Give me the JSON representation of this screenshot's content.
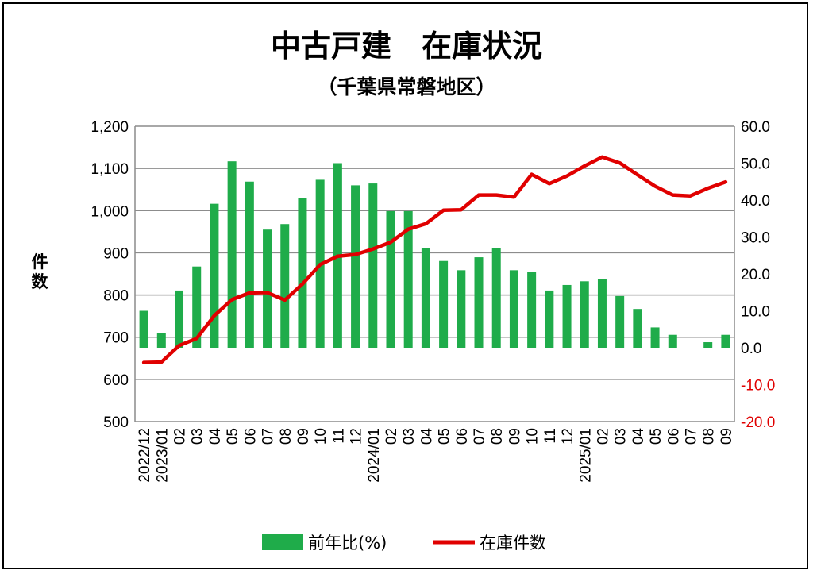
{
  "chart_data": {
    "type": "bar+line",
    "title": "中古戸建　在庫状況",
    "subtitle": "（千葉県常磐地区）",
    "ylabel_left": "件数",
    "ylim_left": [
      500,
      1200
    ],
    "yticks_left": [
      "1,200",
      "1,100",
      "1,000",
      "900",
      "800",
      "700",
      "600",
      "500"
    ],
    "ylim_right": [
      -20,
      60
    ],
    "yticks_right": [
      "60.0",
      "50.0",
      "40.0",
      "30.0",
      "20.0",
      "10.0",
      "0.0",
      "-10.0",
      "-20.0"
    ],
    "categories": [
      "2022/12",
      "2023/01",
      "02",
      "03",
      "04",
      "05",
      "06",
      "07",
      "08",
      "09",
      "10",
      "11",
      "12",
      "2024/01",
      "02",
      "03",
      "04",
      "05",
      "06",
      "07",
      "08",
      "09",
      "10",
      "11",
      "12",
      "2025/01",
      "02",
      "03",
      "04",
      "05",
      "06",
      "07",
      "08",
      "09"
    ],
    "series": [
      {
        "name": "前年比(%)",
        "type": "bar",
        "axis": "right",
        "color": "#1fac4a",
        "values": [
          10.0,
          4.0,
          15.5,
          22.0,
          39.0,
          50.5,
          45.0,
          32.0,
          33.5,
          40.5,
          45.5,
          50.0,
          44.0,
          44.5,
          37.0,
          37.0,
          27.0,
          23.5,
          21.0,
          24.5,
          27.0,
          21.0,
          20.5,
          15.5,
          17.0,
          18.0,
          18.5,
          14.0,
          10.5,
          5.5,
          3.5,
          0.0,
          1.5,
          3.5
        ]
      },
      {
        "name": "在庫件数",
        "type": "line",
        "axis": "left",
        "color": "#e00000",
        "values": [
          640,
          641,
          680,
          697,
          751,
          789,
          805,
          806,
          788,
          826,
          872,
          892,
          896,
          909,
          925,
          956,
          969,
          1001,
          1002,
          1037,
          1037,
          1032,
          1086,
          1064,
          1082,
          1106,
          1127,
          1113,
          1085,
          1058,
          1037,
          1035,
          1053,
          1068
        ]
      }
    ],
    "legend_position": "bottom",
    "grid": "horizontal"
  }
}
